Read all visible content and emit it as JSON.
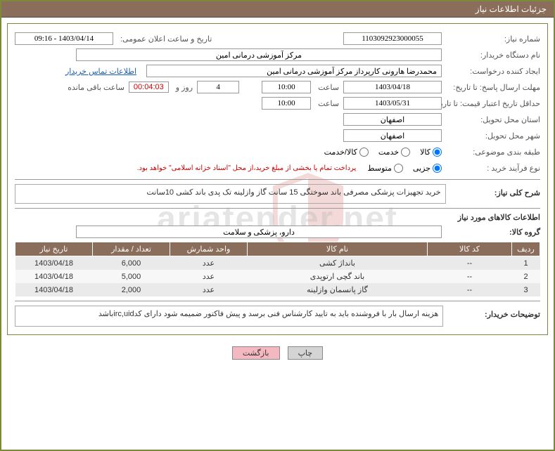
{
  "header": {
    "title": "جزئیات اطلاعات نیاز"
  },
  "fields": {
    "need_number_label": "شماره نیاز:",
    "need_number": "1103092923000055",
    "announce_label": "تاریخ و ساعت اعلان عمومی:",
    "announce_value": "1403/04/14 - 09:16",
    "buyer_org_label": "نام دستگاه خریدار:",
    "buyer_org": "مرکز آموزشی درمانی امین",
    "requester_label": "ایجاد کننده درخواست:",
    "requester": "محمدرضا هارونی کارپرداز مرکز آموزشی درمانی امین",
    "contact_link": "اطلاعات تماس خریدار",
    "deadline_label": "مهلت ارسال پاسخ: تا تاریخ:",
    "deadline_date": "1403/04/18",
    "time_label": "ساعت",
    "deadline_time": "10:00",
    "days_label_pre": "",
    "days_value": "4",
    "days_and": "روز و",
    "countdown": "00:04:03",
    "remaining": "ساعت باقی مانده",
    "validity_label": "حداقل تاریخ اعتبار قیمت: تا تاریخ:",
    "validity_date": "1403/05/31",
    "validity_time": "10:00",
    "delivery_province_label": "استان محل تحویل:",
    "delivery_province": "اصفهان",
    "delivery_city_label": "شهر محل تحویل:",
    "delivery_city": "اصفهان",
    "category_label": "طبقه بندی موضوعی:",
    "cat_kala": "کالا",
    "cat_khadamat": "خدمت",
    "cat_kalakhadamat": "کالا/خدمت",
    "process_label": "نوع فرآیند خرید :",
    "proc_small": "جزیی",
    "proc_medium": "متوسط",
    "process_note": "پرداخت تمام یا بخشی از مبلغ خرید،از محل \"اسناد خزانه اسلامی\" خواهد بود.",
    "need_desc_label": "شرح کلی نیاز:",
    "need_desc": "خرید تجهیزات پزشکی مصرفی باند سوختگی 15 سانت گاز وازلینه تک پدی باند کشی 10سانت",
    "goods_section": "اطلاعات کالاهای مورد نیاز",
    "goods_group_label": "گروه کالا:",
    "goods_group": "دارو، پزشکی و سلامت",
    "buyer_notes_label": "توضیحات خریدار:",
    "buyer_notes": "هزینه ارسال بار با فروشنده باید به تایید کارشناس فنی برسد و پیش فاکتور ضمیمه شود دارای کدirc,uidباشد"
  },
  "table": {
    "headers": {
      "row": "ردیف",
      "code": "کد کالا",
      "name": "نام کالا",
      "unit": "واحد شمارش",
      "qty": "تعداد / مقدار",
      "date": "تاریخ نیاز"
    },
    "rows": [
      {
        "n": "1",
        "code": "--",
        "name": "بانداژ کشی",
        "unit": "عدد",
        "qty": "6,000",
        "date": "1403/04/18"
      },
      {
        "n": "2",
        "code": "--",
        "name": "باند گچی ارتوپدی",
        "unit": "عدد",
        "qty": "5,000",
        "date": "1403/04/18"
      },
      {
        "n": "3",
        "code": "--",
        "name": "گاز پانسمان وازلینه",
        "unit": "عدد",
        "qty": "2,000",
        "date": "1403/04/18"
      }
    ]
  },
  "buttons": {
    "print": "چاپ",
    "back": "بازگشت"
  },
  "watermark": "ariatender.net",
  "colors": {
    "frame": "#7a8a3a",
    "header_bg": "#8a6d5a",
    "link": "#1a5fb4",
    "alert": "#c00",
    "back_btn": "#f4b8c0"
  }
}
